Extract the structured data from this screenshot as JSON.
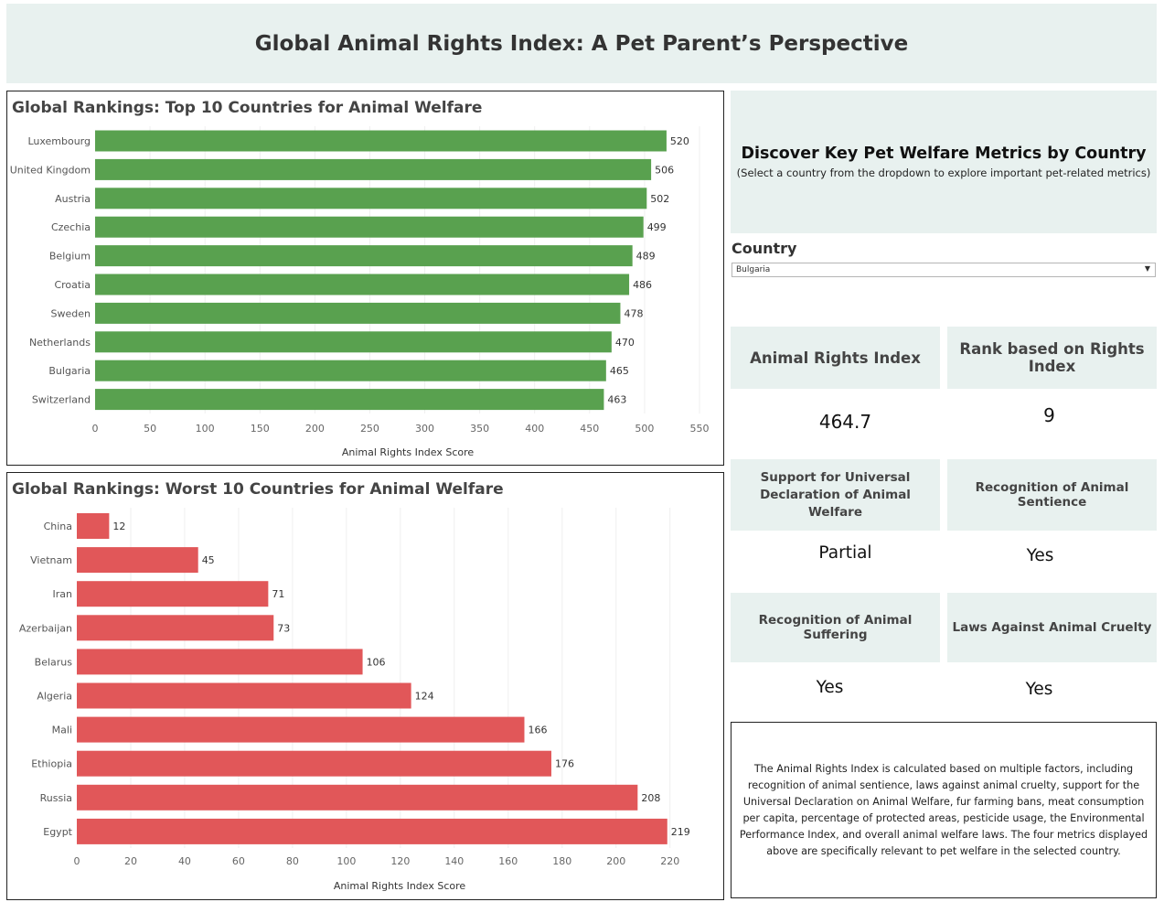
{
  "header": {
    "title": "Global Animal Rights Index: A Pet Parent’s Perspective"
  },
  "chart_data": [
    {
      "type": "bar",
      "orientation": "horizontal",
      "title": "Global Rankings: Top 10 Countries for Animal Welfare",
      "xlabel": "Animal Rights Index Score",
      "categories": [
        "Luxembourg",
        "United Kingdom",
        "Austria",
        "Czechia",
        "Belgium",
        "Croatia",
        "Sweden",
        "Netherlands",
        "Bulgaria",
        "Switzerland"
      ],
      "values": [
        520,
        506,
        502,
        499,
        489,
        486,
        478,
        470,
        465,
        463
      ],
      "xticks": [
        0,
        50,
        100,
        150,
        200,
        250,
        300,
        350,
        400,
        450,
        500,
        550
      ],
      "xlim": [
        0,
        560
      ],
      "color": "#59a14f",
      "grid": true
    },
    {
      "type": "bar",
      "orientation": "horizontal",
      "title": "Global Rankings: Worst 10 Countries for Animal Welfare",
      "xlabel": "Animal Rights Index Score",
      "categories": [
        "China",
        "Vietnam",
        "Iran",
        "Azerbaijan",
        "Belarus",
        "Algeria",
        "Mali",
        "Ethiopia",
        "Russia",
        "Egypt"
      ],
      "values": [
        12,
        45,
        71,
        73,
        106,
        124,
        166,
        176,
        208,
        219
      ],
      "xticks": [
        0,
        20,
        40,
        60,
        80,
        100,
        120,
        140,
        160,
        180,
        200,
        220
      ],
      "xlim": [
        0,
        234
      ],
      "color": "#e15759",
      "grid": true
    }
  ],
  "panel": {
    "title": "Discover Key Pet Welfare Metrics by Country",
    "subtitle": "(Select a country from the dropdown to explore important pet-related metrics)",
    "country_label": "Country",
    "country_selected": "Bulgaria",
    "metrics": {
      "index_label": "Animal Rights Index",
      "index_value": "464.7",
      "rank_label": "Rank based on Rights Index",
      "rank_value": "9",
      "udaw_label": "Support for Universal Declaration of Animal Welfare",
      "udaw_value": "Partial",
      "sentience_label": "Recognition of Animal Sentience",
      "sentience_value": "Yes",
      "suffering_label": "Recognition of Animal Suffering",
      "suffering_value": "Yes",
      "cruelty_label": "Laws Against Animal Cruelty",
      "cruelty_value": "Yes"
    },
    "description": "The Animal Rights Index is calculated based on multiple factors, including recognition of animal sentience, laws against animal cruelty, support for the Universal Declaration on Animal Welfare, fur farming bans, meat consumption per capita, percentage of protected areas, pesticide usage, the Environmental Performance Index, and overall animal welfare laws. The four metrics displayed above are specifically relevant to pet welfare in the selected country."
  }
}
